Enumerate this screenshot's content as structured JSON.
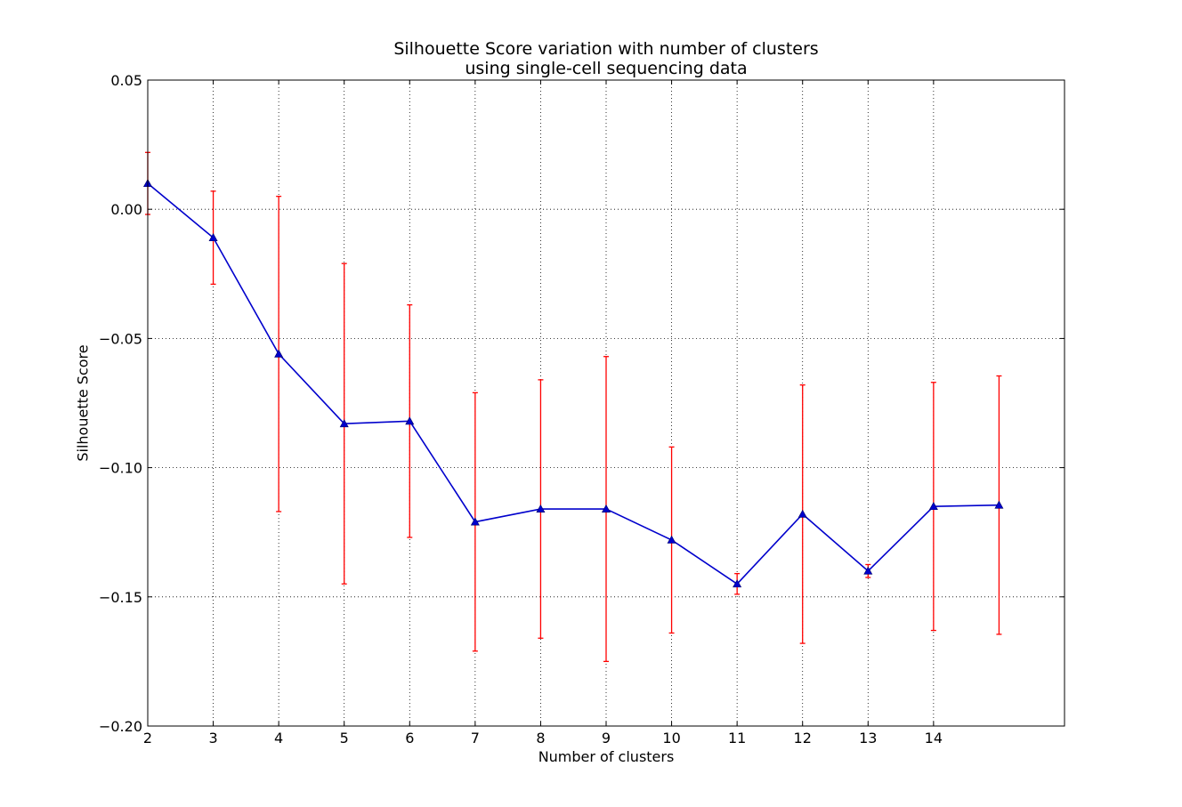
{
  "chart_data": {
    "type": "line",
    "title": [
      "Silhouette Score variation with number of clusters",
      "using single-cell sequencing data"
    ],
    "xlabel": "Number of clusters",
    "ylabel": "Silhouette Score",
    "xlim": [
      2,
      16
    ],
    "ylim": [
      -0.2,
      0.05
    ],
    "xticks": [
      2,
      3,
      4,
      5,
      6,
      7,
      8,
      9,
      10,
      11,
      12,
      13,
      14
    ],
    "yticks": [
      {
        "value": -0.2,
        "label": "−0.20"
      },
      {
        "value": -0.15,
        "label": "−0.15"
      },
      {
        "value": -0.1,
        "label": "−0.10"
      },
      {
        "value": -0.05,
        "label": "−0.05"
      },
      {
        "value": 0.0,
        "label": "0.00"
      },
      {
        "value": 0.05,
        "label": "0.05"
      }
    ],
    "grid": true,
    "series": [
      {
        "color": "#0000cc",
        "marker": "triangle",
        "error_color": "#ff0000",
        "x": [
          2,
          3,
          4,
          5,
          6,
          7,
          8,
          9,
          10,
          11,
          12,
          13,
          14,
          15
        ],
        "y": [
          0.01,
          -0.011,
          -0.056,
          -0.083,
          -0.082,
          -0.121,
          -0.116,
          -0.116,
          -0.128,
          -0.145,
          -0.118,
          -0.14,
          -0.115,
          -0.1145
        ],
        "err": [
          0.012,
          0.018,
          0.061,
          0.062,
          0.045,
          0.05,
          0.05,
          0.059,
          0.036,
          0.004,
          0.05,
          0.0025,
          0.048,
          0.05
        ]
      }
    ]
  }
}
